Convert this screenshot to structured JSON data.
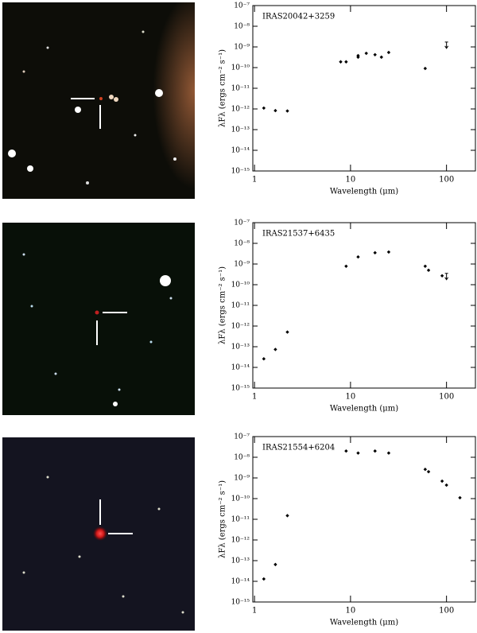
{
  "chart_data": [
    {
      "type": "scatter",
      "title": "IRAS20042+3259",
      "xlabel": "Wavelength (μm)",
      "ylabel": "λFλ (ergs cm⁻² s⁻¹)",
      "xlog": true,
      "ylog": true,
      "xlim": [
        0.96,
        200
      ],
      "ylim": [
        1e-15,
        1e-07
      ],
      "xticks": [
        1,
        10,
        100
      ],
      "yticks": [
        {
          "value": 1e-07,
          "label": "10⁻⁷"
        },
        {
          "value": 1e-08,
          "label": "10⁻⁸"
        },
        {
          "value": 1e-09,
          "label": "10⁻⁹"
        },
        {
          "value": 1e-10,
          "label": "10⁻¹⁰"
        },
        {
          "value": 1e-11,
          "label": "10⁻¹¹"
        },
        {
          "value": 1e-12,
          "label": "10⁻¹²"
        },
        {
          "value": 1e-13,
          "label": "10⁻¹³"
        },
        {
          "value": 1e-14,
          "label": "10⁻¹⁴"
        },
        {
          "value": 1e-15,
          "label": "10⁻¹⁵"
        }
      ],
      "x": [
        1.25,
        1.65,
        2.2,
        7.9,
        9.0,
        12,
        12,
        14.6,
        18,
        21,
        25,
        60
      ],
      "values": [
        1.1e-12,
        8.3e-13,
        8e-13,
        1.9e-10,
        1.9e-10,
        3.8e-10,
        3.2e-10,
        4.9e-10,
        4.2e-10,
        3.2e-10,
        5.4e-10,
        9.1e-11
      ],
      "limit_x": [
        100
      ],
      "limit_values": [
        9.3e-10
      ],
      "color": "#000000"
    },
    {
      "type": "scatter",
      "title": "IRAS21537+6435",
      "xlabel": "Wavelength (μm)",
      "ylabel": "λFλ (ergs cm⁻² s⁻¹)",
      "xlog": true,
      "ylog": true,
      "xlim": [
        0.96,
        200
      ],
      "ylim": [
        1e-15,
        1e-07
      ],
      "xticks": [
        1,
        10,
        100
      ],
      "yticks": [
        {
          "value": 1e-07,
          "label": "10⁻⁷"
        },
        {
          "value": 1e-08,
          "label": "10⁻⁸"
        },
        {
          "value": 1e-09,
          "label": "10⁻⁹"
        },
        {
          "value": 1e-10,
          "label": "10⁻¹⁰"
        },
        {
          "value": 1e-11,
          "label": "10⁻¹¹"
        },
        {
          "value": 1e-12,
          "label": "10⁻¹²"
        },
        {
          "value": 1e-13,
          "label": "10⁻¹³"
        },
        {
          "value": 1e-14,
          "label": "10⁻¹⁴"
        },
        {
          "value": 1e-15,
          "label": "10⁻¹⁵"
        }
      ],
      "x": [
        1.25,
        1.65,
        2.2,
        9,
        12,
        18,
        25,
        60,
        65,
        90
      ],
      "values": [
        2.6e-14,
        7.4e-14,
        5.1e-13,
        7.8e-10,
        2.2e-09,
        3.5e-09,
        3.8e-09,
        7.8e-10,
        5e-10,
        2.7e-10
      ],
      "limit_x": [
        100
      ],
      "limit_values": [
        1.9e-10
      ],
      "color": "#000000"
    },
    {
      "type": "scatter",
      "title": "IRAS21554+6204",
      "xlabel": "Wavelength (μm)",
      "ylabel": "λFλ (ergs cm⁻² s⁻¹)",
      "xlog": true,
      "ylog": true,
      "xlim": [
        0.96,
        200
      ],
      "ylim": [
        1e-15,
        1e-07
      ],
      "xticks": [
        1,
        10,
        100
      ],
      "yticks": [
        {
          "value": 1e-07,
          "label": "10⁻⁷"
        },
        {
          "value": 1e-08,
          "label": "10⁻⁸"
        },
        {
          "value": 1e-09,
          "label": "10⁻⁹"
        },
        {
          "value": 1e-10,
          "label": "10⁻¹⁰"
        },
        {
          "value": 1e-11,
          "label": "10⁻¹¹"
        },
        {
          "value": 1e-12,
          "label": "10⁻¹²"
        },
        {
          "value": 1e-13,
          "label": "10⁻¹³"
        },
        {
          "value": 1e-14,
          "label": "10⁻¹⁴"
        },
        {
          "value": 1e-15,
          "label": "10⁻¹⁵"
        }
      ],
      "x": [
        1.25,
        1.65,
        2.2,
        9,
        12,
        18,
        25,
        60,
        65,
        90,
        100,
        138
      ],
      "values": [
        1.3e-14,
        6.5e-14,
        1.5e-11,
        2e-08,
        1.6e-08,
        2e-08,
        1.6e-08,
        2.6e-09,
        2e-09,
        7e-10,
        4.5e-10,
        1.1e-10
      ],
      "limit_x": [],
      "limit_values": [],
      "color": "#000000"
    }
  ]
}
